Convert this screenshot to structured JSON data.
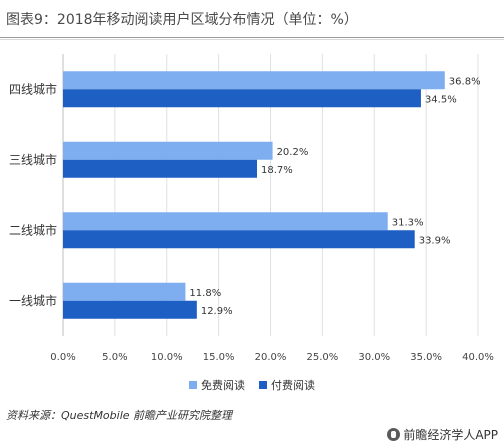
{
  "title": "图表9：2018年移动阅读用户区域分布情况（单位：%）",
  "source": "资料来源：QuestMobile  前瞻产业研究院整理",
  "brand": "前瞻经济学人APP",
  "colors": {
    "free": "#7eaef0",
    "paid": "#1e5fc4",
    "grid": "#e0e0e0",
    "axis": "#bfbfbf"
  },
  "chart_data": {
    "type": "bar",
    "orientation": "horizontal",
    "categories": [
      "四线城市",
      "三线城市",
      "二线城市",
      "一线城市"
    ],
    "series": [
      {
        "name": "免费阅读",
        "values": [
          36.8,
          20.2,
          31.3,
          11.8
        ]
      },
      {
        "name": "付费阅读",
        "values": [
          34.5,
          18.7,
          33.9,
          12.9
        ]
      }
    ],
    "x_ticks": [
      "0.0%",
      "5.0%",
      "10.0%",
      "15.0%",
      "20.0%",
      "25.0%",
      "30.0%",
      "35.0%",
      "40.0%"
    ],
    "xlim": [
      0,
      40
    ],
    "value_suffix": "%",
    "legend_position": "bottom",
    "grid": "vertical"
  }
}
